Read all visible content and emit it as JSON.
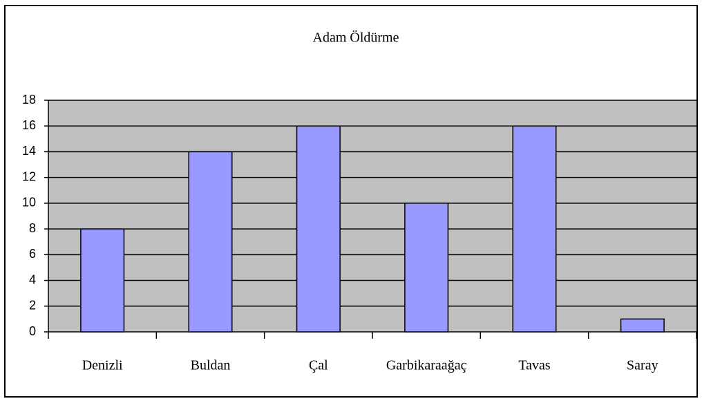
{
  "chart_data": {
    "type": "bar",
    "title": "Adam Öldürme",
    "categories": [
      "Denizli",
      "Buldan",
      "Çal",
      "Garbikaraağaç",
      "Tavas",
      "Saray"
    ],
    "values": [
      8,
      14,
      16,
      10,
      16,
      1
    ],
    "color": "#9999ff",
    "ylim": [
      0,
      18
    ],
    "yticks": [
      0,
      2,
      4,
      6,
      8,
      10,
      12,
      14,
      16,
      18
    ],
    "grid": true
  }
}
